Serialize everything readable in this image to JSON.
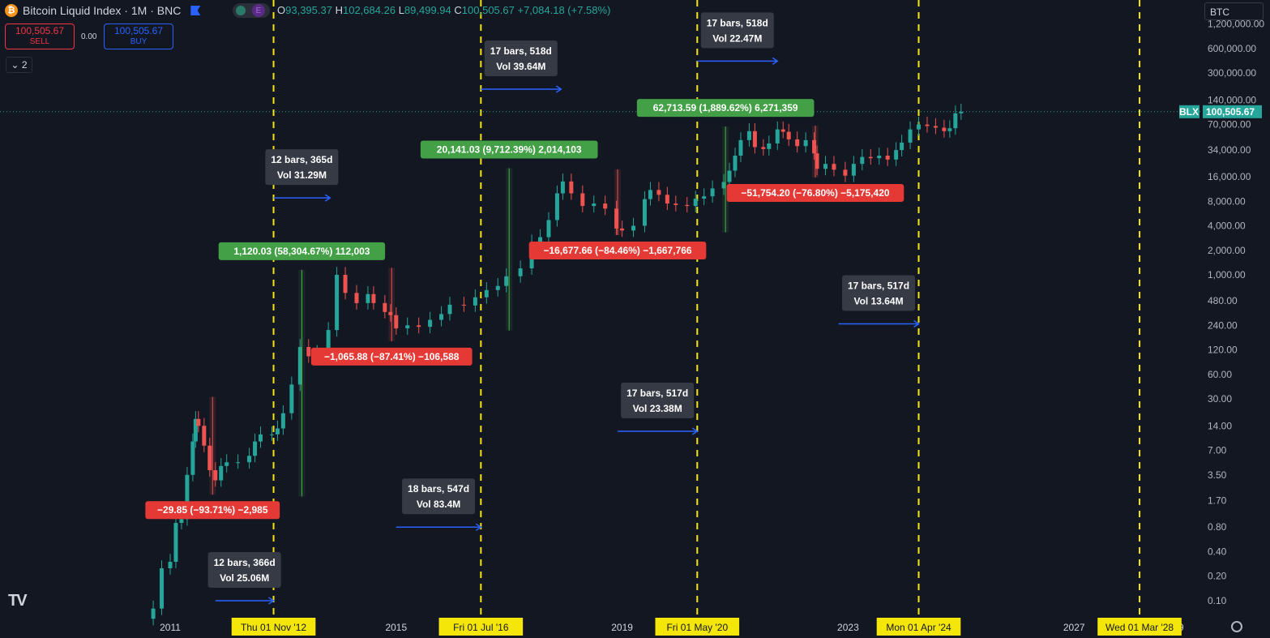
{
  "header": {
    "title": "Bitcoin Liquid Index · 1M · BNC",
    "ohlc": {
      "o_label": "O",
      "o": "93,395.37",
      "h_label": "H",
      "h": "102,684.26",
      "l_label": "L",
      "l": "89,499.94",
      "c_label": "C",
      "c": "100,505.67",
      "change": "+7,084.18 (+7.58%)"
    },
    "mode_label": "E"
  },
  "trade": {
    "sell_price": "100,505.67",
    "sell_label": "SELL",
    "spread": "0.00",
    "buy_price": "100,505.67",
    "buy_label": "BUY"
  },
  "indicators_count": "2",
  "currency": "BTC",
  "price_label": {
    "symbol": "BLX",
    "value": "100,505.67"
  },
  "colors": {
    "up": "#26a69a",
    "down": "#ef5350",
    "accent": "#2962ff",
    "cycle_line": "#f5e60a",
    "bg": "#131722"
  },
  "chart_data": {
    "type": "candlestick",
    "y_scale": "log",
    "y_ticks": [
      "1,200,000.00",
      "600,000.00",
      "300,000.00",
      "140,000.00",
      "70,000.00",
      "34,000.00",
      "16,000.00",
      "8,000.00",
      "4,000.00",
      "2,000.00",
      "1,000.00",
      "480.00",
      "240.00",
      "120.00",
      "60.00",
      "30.00",
      "14.00",
      "7.00",
      "3.50",
      "1.70",
      "0.80",
      "0.40",
      "0.20",
      "0.10"
    ],
    "x_ticks": [
      {
        "label": "2011",
        "t": 2011.0
      },
      {
        "label": "2015",
        "t": 2015.0
      },
      {
        "label": "2019",
        "t": 2019.0
      },
      {
        "label": "2023",
        "t": 2023.0
      },
      {
        "label": "2027",
        "t": 2027.0
      }
    ],
    "x_partial_ticks": [
      {
        "label": "7",
        "t": 2016.9
      },
      {
        "label": "21",
        "t": 2020.9
      },
      {
        "label": "25",
        "t": 2024.9
      },
      {
        "label": "029",
        "t": 2028.8
      }
    ],
    "cycle_dates": [
      {
        "label": "Thu 01 Nov '12",
        "t": 2012.83
      },
      {
        "label": "Fri 01 Jul '16",
        "t": 2016.5
      },
      {
        "label": "Fri 01 May '20",
        "t": 2020.33
      },
      {
        "label": "Mon 01 Apr '24",
        "t": 2024.25
      },
      {
        "label": "Wed 01 Mar '28",
        "t": 2028.16
      }
    ],
    "price_series": [
      [
        2010.55,
        0.06
      ],
      [
        2010.7,
        0.08
      ],
      [
        2010.85,
        0.25
      ],
      [
        2011.0,
        0.3
      ],
      [
        2011.1,
        0.9
      ],
      [
        2011.2,
        1.0
      ],
      [
        2011.3,
        3.5
      ],
      [
        2011.4,
        9
      ],
      [
        2011.45,
        17
      ],
      [
        2011.5,
        14
      ],
      [
        2011.6,
        8
      ],
      [
        2011.7,
        4
      ],
      [
        2011.8,
        3
      ],
      [
        2011.9,
        4.5
      ],
      [
        2012.0,
        5
      ],
      [
        2012.2,
        5
      ],
      [
        2012.4,
        6
      ],
      [
        2012.5,
        9
      ],
      [
        2012.6,
        11
      ],
      [
        2012.8,
        11
      ],
      [
        2012.9,
        13
      ],
      [
        2013.0,
        20
      ],
      [
        2013.15,
        45
      ],
      [
        2013.3,
        130
      ],
      [
        2013.45,
        100
      ],
      [
        2013.6,
        110
      ],
      [
        2013.8,
        210
      ],
      [
        2013.95,
        1000
      ],
      [
        2014.1,
        600
      ],
      [
        2014.3,
        450
      ],
      [
        2014.5,
        580
      ],
      [
        2014.6,
        450
      ],
      [
        2014.8,
        350
      ],
      [
        2014.9,
        320
      ],
      [
        2015.0,
        220
      ],
      [
        2015.2,
        240
      ],
      [
        2015.4,
        230
      ],
      [
        2015.6,
        280
      ],
      [
        2015.8,
        330
      ],
      [
        2015.95,
        430
      ],
      [
        2016.2,
        420
      ],
      [
        2016.4,
        530
      ],
      [
        2016.6,
        650
      ],
      [
        2016.8,
        730
      ],
      [
        2016.95,
        960
      ],
      [
        2017.2,
        1200
      ],
      [
        2017.4,
        2500
      ],
      [
        2017.55,
        2900
      ],
      [
        2017.7,
        4700
      ],
      [
        2017.85,
        10000
      ],
      [
        2017.95,
        14000
      ],
      [
        2018.1,
        10000
      ],
      [
        2018.3,
        7000
      ],
      [
        2018.5,
        7500
      ],
      [
        2018.7,
        6500
      ],
      [
        2018.9,
        3700
      ],
      [
        2019.0,
        3500
      ],
      [
        2019.2,
        4000
      ],
      [
        2019.4,
        8500
      ],
      [
        2019.5,
        11000
      ],
      [
        2019.65,
        9600
      ],
      [
        2019.8,
        7500
      ],
      [
        2019.95,
        7200
      ],
      [
        2020.15,
        7000
      ],
      [
        2020.3,
        8600
      ],
      [
        2020.45,
        9200
      ],
      [
        2020.6,
        11500
      ],
      [
        2020.8,
        13800
      ],
      [
        2020.9,
        19000
      ],
      [
        2021.0,
        29000
      ],
      [
        2021.1,
        45000
      ],
      [
        2021.25,
        58000
      ],
      [
        2021.35,
        37000
      ],
      [
        2021.5,
        35000
      ],
      [
        2021.6,
        41000
      ],
      [
        2021.75,
        61000
      ],
      [
        2021.85,
        57000
      ],
      [
        2021.95,
        46000
      ],
      [
        2022.1,
        38000
      ],
      [
        2022.25,
        45000
      ],
      [
        2022.4,
        31000
      ],
      [
        2022.45,
        20000
      ],
      [
        2022.6,
        23000
      ],
      [
        2022.75,
        19500
      ],
      [
        2022.95,
        16500
      ],
      [
        2023.1,
        23000
      ],
      [
        2023.25,
        28000
      ],
      [
        2023.4,
        27000
      ],
      [
        2023.55,
        29000
      ],
      [
        2023.7,
        26000
      ],
      [
        2023.85,
        34000
      ],
      [
        2023.95,
        42000
      ],
      [
        2024.1,
        61000
      ],
      [
        2024.25,
        70000
      ],
      [
        2024.4,
        67000
      ],
      [
        2024.55,
        64000
      ],
      [
        2024.7,
        58000
      ],
      [
        2024.8,
        63000
      ],
      [
        2024.9,
        96000
      ],
      [
        2025.0,
        100505
      ]
    ],
    "annotations": [
      {
        "text": "12 bars, 366d",
        "sub": "Vol 25.06M",
        "kind": "range",
        "t0": 2011.8,
        "t1": 2012.83,
        "p": 0.1
      },
      {
        "text": "12 bars, 365d",
        "sub": "Vol 31.29M",
        "kind": "range",
        "t0": 2012.83,
        "t1": 2013.83,
        "p": 8800
      },
      {
        "text": "18 bars, 547d",
        "sub": "Vol 83.4M",
        "kind": "range",
        "t0": 2015.0,
        "t1": 2016.5,
        "p": 0.8
      },
      {
        "text": "17 bars, 518d",
        "sub": "Vol 39.64M",
        "kind": "range",
        "t0": 2016.5,
        "t1": 2017.92,
        "p": 190000
      },
      {
        "text": "17 bars, 517d",
        "sub": "Vol 23.38M",
        "kind": "range",
        "t0": 2018.92,
        "t1": 2020.33,
        "p": 12
      },
      {
        "text": "17 bars, 518d",
        "sub": "Vol 22.47M",
        "kind": "range",
        "t0": 2020.33,
        "t1": 2021.75,
        "p": 420000
      },
      {
        "text": "17 bars, 517d",
        "sub": "Vol 13.64M",
        "kind": "range",
        "t0": 2022.83,
        "t1": 2024.25,
        "p": 250
      }
    ],
    "moves": [
      {
        "text": "1,120.03 (58,304.67%) 112,003",
        "dir": "up",
        "t": 2013.33,
        "p0": 1.9,
        "p1": 1150
      },
      {
        "text": "−29.85 (−93.71%) −2,985",
        "dir": "down",
        "t": 2011.75,
        "p0": 31.8,
        "p1": 2.0
      },
      {
        "text": "−1,065.88 (−87.41%) −106,588",
        "dir": "down",
        "t": 2014.92,
        "p0": 1220,
        "p1": 153
      },
      {
        "text": "20,141.03 (9,712.39%) 2,014,103",
        "dir": "up",
        "t": 2017.0,
        "p0": 207,
        "p1": 20350
      },
      {
        "text": "−16,677.66 (−84.46%) −1,667,766",
        "dir": "down",
        "t": 2018.92,
        "p0": 19750,
        "p1": 3070
      },
      {
        "text": "62,713.59 (1,889.62%) 6,271,359",
        "dir": "up",
        "t": 2020.83,
        "p0": 3320,
        "p1": 66000
      },
      {
        "text": "−51,754.20 (−76.80%) −5,175,420",
        "dir": "down",
        "t": 2022.42,
        "p0": 67400,
        "p1": 15640
      }
    ]
  }
}
